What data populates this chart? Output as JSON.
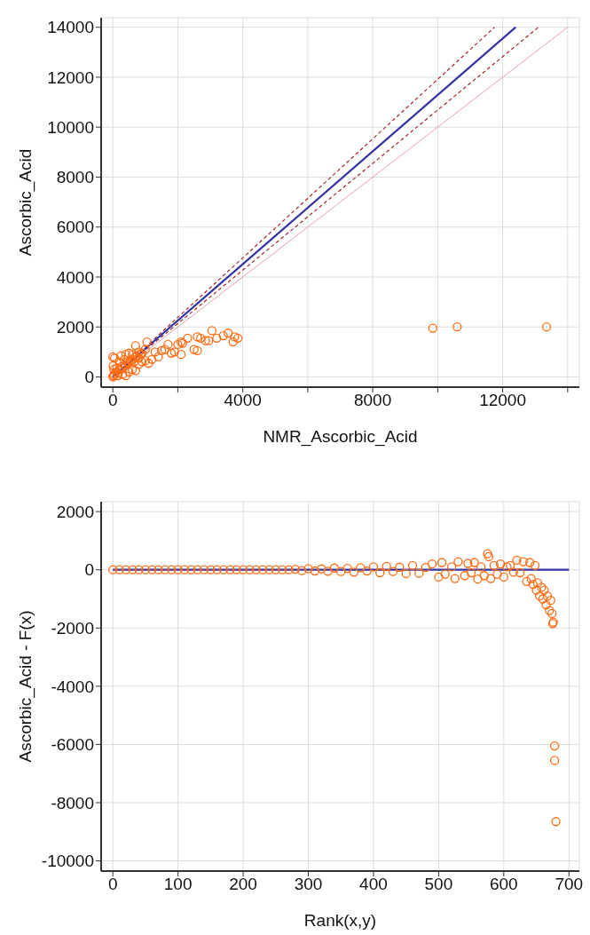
{
  "chart_data": [
    {
      "type": "scatter",
      "xlabel": "NMR_Ascorbic_Acid",
      "ylabel": "Ascorbic_Acid",
      "xlim": [
        -360,
        14360
      ],
      "ylim": [
        -410,
        14380
      ],
      "xticks": [
        0,
        {
          "value": 2000,
          "label": null
        },
        4000,
        {
          "value": 6000,
          "label": null
        },
        8000,
        {
          "value": 10000,
          "label": null
        },
        12000,
        {
          "value": 14000,
          "label": null
        }
      ],
      "yticks": [
        0,
        2000,
        4000,
        6000,
        8000,
        10000,
        12000,
        14000
      ],
      "grid": true,
      "series": [
        {
          "type": "line",
          "color": "#e8a0a8",
          "line_style": "solid",
          "x": [
            0,
            14000
          ],
          "values": [
            0,
            14000
          ]
        },
        {
          "type": "line",
          "color": "#a02828",
          "line_style": "dashed",
          "x": [
            0,
            11750
          ],
          "values": [
            0,
            14000
          ]
        },
        {
          "type": "line",
          "color": "#a02828",
          "line_style": "dashed",
          "x": [
            0,
            13100
          ],
          "values": [
            0,
            14000
          ]
        },
        {
          "type": "line",
          "color": "#3434a4",
          "line_style": "solid",
          "x": [
            0,
            12400
          ],
          "values": [
            0,
            14000
          ]
        },
        {
          "marker": "circle",
          "color": "#ff6a10",
          "x": [
            0,
            20,
            50,
            30,
            10,
            0,
            50,
            100,
            150,
            200,
            250,
            300,
            350,
            400,
            450,
            500,
            550,
            600,
            650,
            700,
            750,
            800,
            850,
            900,
            1000,
            1050,
            400,
            250,
            500,
            700,
            150,
            300,
            400,
            500,
            600,
            700,
            800,
            900,
            1000,
            1100,
            1200,
            1300,
            1400,
            1500,
            1600,
            1700,
            1800,
            1900,
            2000,
            2100,
            2150,
            2100,
            2300,
            2500,
            2600,
            2600,
            2700,
            2850,
            2950,
            3050,
            3200,
            3400,
            3550,
            3700,
            3750,
            3850,
            9850,
            10600,
            13350,
            200,
            350,
            600,
            800,
            120
          ],
          "values": [
            0,
            50,
            100,
            300,
            450,
            800,
            750,
            200,
            150,
            300,
            400,
            350,
            500,
            450,
            600,
            550,
            650,
            700,
            600,
            800,
            850,
            750,
            900,
            950,
            1100,
            1400,
            900,
            850,
            950,
            1250,
            50,
            100,
            50,
            200,
            300,
            250,
            500,
            600,
            650,
            550,
            700,
            1000,
            800,
            1050,
            1100,
            1300,
            950,
            1000,
            1300,
            1400,
            1350,
            900,
            1550,
            1100,
            1050,
            1600,
            1550,
            1450,
            1450,
            1850,
            1550,
            1650,
            1750,
            1400,
            1600,
            1550,
            1950,
            2000,
            2000,
            600,
            700,
            900,
            1000,
            350
          ]
        }
      ]
    },
    {
      "type": "scatter",
      "xlabel": "Rank(x,y)",
      "ylabel": "Ascorbic_Acid - F(x)",
      "xlim": [
        -18,
        716
      ],
      "ylim": [
        -10350,
        2340
      ],
      "xticks": [
        0,
        100,
        200,
        300,
        400,
        500,
        600,
        700
      ],
      "yticks": [
        -10000,
        -8000,
        -6000,
        -4000,
        -2000,
        0,
        2000
      ],
      "grid": true,
      "series": [
        {
          "type": "line",
          "color": "#3434a4",
          "line_style": "solid",
          "x": [
            0,
            700
          ],
          "values": [
            0,
            0
          ]
        },
        {
          "marker": "circle",
          "color": "#ff6a10",
          "x": [
            0,
            10,
            20,
            30,
            40,
            50,
            60,
            70,
            80,
            90,
            100,
            110,
            120,
            130,
            140,
            150,
            160,
            170,
            180,
            190,
            200,
            210,
            220,
            230,
            240,
            250,
            260,
            270,
            280,
            290,
            300,
            310,
            320,
            330,
            340,
            350,
            360,
            370,
            380,
            390,
            400,
            410,
            420,
            430,
            440,
            450,
            460,
            470,
            480,
            490,
            500,
            505,
            510,
            520,
            525,
            530,
            540,
            545,
            550,
            555,
            560,
            565,
            570,
            575,
            577,
            580,
            585,
            590,
            595,
            600,
            605,
            610,
            615,
            620,
            625,
            630,
            635,
            640,
            642,
            645,
            648,
            650,
            652,
            655,
            658,
            660,
            662,
            665,
            667,
            670,
            672,
            674,
            675,
            676,
            678,
            678,
            680
          ],
          "values": [
            0,
            0,
            0,
            0,
            0,
            0,
            0,
            0,
            0,
            0,
            0,
            0,
            0,
            0,
            0,
            0,
            0,
            0,
            0,
            0,
            0,
            0,
            0,
            0,
            0,
            0,
            0,
            0,
            20,
            -30,
            40,
            -40,
            30,
            -50,
            60,
            -60,
            50,
            -80,
            70,
            -40,
            100,
            -100,
            120,
            -60,
            90,
            -130,
            150,
            -120,
            80,
            200,
            -250,
            250,
            -150,
            100,
            -300,
            280,
            -200,
            220,
            -100,
            250,
            -320,
            100,
            -200,
            550,
            450,
            -300,
            150,
            -150,
            200,
            -250,
            100,
            150,
            -80,
            330,
            -100,
            280,
            -400,
            250,
            -300,
            -500,
            150,
            -700,
            -450,
            -900,
            -600,
            -1000,
            -700,
            -1200,
            -900,
            -1400,
            -1050,
            -1500,
            -1850,
            -1800,
            -6050,
            -6550,
            -8650
          ]
        }
      ]
    }
  ]
}
